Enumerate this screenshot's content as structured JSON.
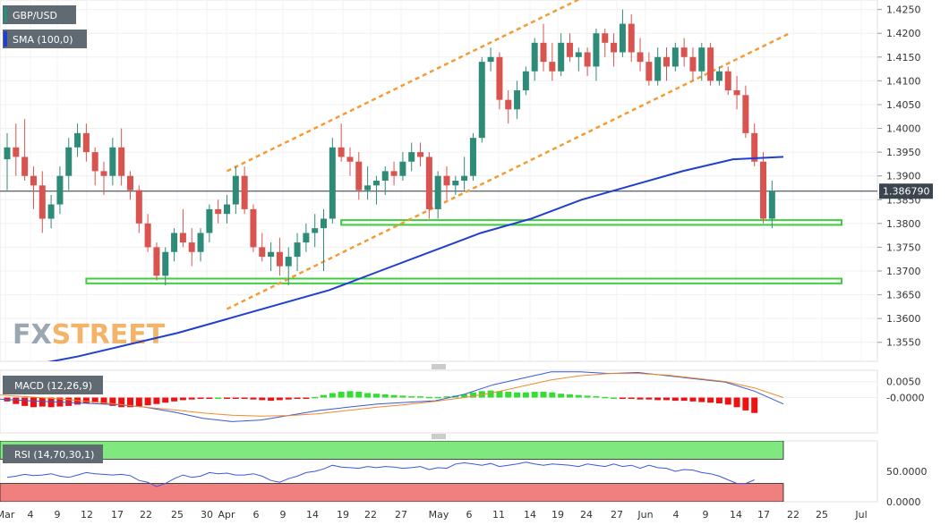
{
  "chart_data": [
    {
      "type": "candlestick",
      "title": "GBP/USD",
      "x_ticks": [
        "Mar",
        "4",
        "9",
        "12",
        "17",
        "22",
        "25",
        "30",
        "Apr",
        "6",
        "9",
        "14",
        "19",
        "22",
        "27",
        "May",
        "6",
        "11",
        "14",
        "19",
        "24",
        "27",
        "Jun",
        "4",
        "9",
        "14",
        "17",
        "22",
        "25",
        "Jul"
      ],
      "y_ticks": [
        "1.4250",
        "1.4200",
        "1.4150",
        "1.4100",
        "1.4050",
        "1.4000",
        "1.3950",
        "1.3900",
        "1.3850",
        "1.3800",
        "1.3750",
        "1.3700",
        "1.3650",
        "1.3600",
        "1.3550"
      ],
      "ylim": [
        1.351,
        1.427
      ],
      "last_price": 1.38679,
      "last_price_label": "1.386790",
      "candles": [
        [
          1.3935,
          1.399,
          1.387,
          1.396
        ],
        [
          1.396,
          1.401,
          1.39,
          1.394
        ],
        [
          1.394,
          1.402,
          1.389,
          1.39
        ],
        [
          1.39,
          1.392,
          1.383,
          1.388
        ],
        [
          1.388,
          1.391,
          1.378,
          1.381
        ],
        [
          1.381,
          1.386,
          1.379,
          1.384
        ],
        [
          1.384,
          1.392,
          1.382,
          1.39
        ],
        [
          1.39,
          1.398,
          1.387,
          1.396
        ],
        [
          1.396,
          1.401,
          1.394,
          1.399
        ],
        [
          1.399,
          1.401,
          1.393,
          1.395
        ],
        [
          1.395,
          1.396,
          1.388,
          1.391
        ],
        [
          1.391,
          1.393,
          1.386,
          1.39
        ],
        [
          1.39,
          1.398,
          1.388,
          1.396
        ],
        [
          1.396,
          1.4,
          1.388,
          1.39
        ],
        [
          1.39,
          1.391,
          1.385,
          1.387
        ],
        [
          1.387,
          1.388,
          1.378,
          1.38
        ],
        [
          1.38,
          1.382,
          1.374,
          1.375
        ],
        [
          1.375,
          1.376,
          1.368,
          1.369
        ],
        [
          1.369,
          1.375,
          1.367,
          1.374
        ],
        [
          1.374,
          1.379,
          1.372,
          1.378
        ],
        [
          1.378,
          1.383,
          1.375,
          1.376
        ],
        [
          1.376,
          1.379,
          1.371,
          1.374
        ],
        [
          1.374,
          1.379,
          1.372,
          1.378
        ],
        [
          1.378,
          1.384,
          1.376,
          1.383
        ],
        [
          1.383,
          1.385,
          1.38,
          1.382
        ],
        [
          1.382,
          1.386,
          1.38,
          1.384
        ],
        [
          1.384,
          1.392,
          1.382,
          1.39
        ],
        [
          1.39,
          1.392,
          1.382,
          1.383
        ],
        [
          1.383,
          1.384,
          1.374,
          1.375
        ],
        [
          1.375,
          1.378,
          1.372,
          1.373
        ],
        [
          1.373,
          1.376,
          1.37,
          1.374
        ],
        [
          1.374,
          1.377,
          1.369,
          1.371
        ],
        [
          1.371,
          1.375,
          1.367,
          1.373
        ],
        [
          1.373,
          1.378,
          1.37,
          1.376
        ],
        [
          1.376,
          1.38,
          1.374,
          1.378
        ],
        [
          1.378,
          1.382,
          1.375,
          1.379
        ],
        [
          1.379,
          1.383,
          1.37,
          1.381
        ],
        [
          1.381,
          1.398,
          1.38,
          1.396
        ],
        [
          1.396,
          1.401,
          1.393,
          1.394
        ],
        [
          1.394,
          1.396,
          1.39,
          1.393
        ],
        [
          1.393,
          1.395,
          1.385,
          1.387
        ],
        [
          1.387,
          1.392,
          1.385,
          1.388
        ],
        [
          1.388,
          1.39,
          1.384,
          1.389
        ],
        [
          1.389,
          1.392,
          1.386,
          1.391
        ],
        [
          1.391,
          1.393,
          1.388,
          1.39
        ],
        [
          1.39,
          1.395,
          1.389,
          1.393
        ],
        [
          1.393,
          1.397,
          1.391,
          1.395
        ],
        [
          1.395,
          1.397,
          1.392,
          1.394
        ],
        [
          1.394,
          1.395,
          1.381,
          1.383
        ],
        [
          1.383,
          1.391,
          1.381,
          1.39
        ],
        [
          1.39,
          1.392,
          1.385,
          1.388
        ],
        [
          1.388,
          1.39,
          1.386,
          1.389
        ],
        [
          1.389,
          1.394,
          1.387,
          1.39
        ],
        [
          1.39,
          1.399,
          1.389,
          1.398
        ],
        [
          1.398,
          1.415,
          1.397,
          1.414
        ],
        [
          1.414,
          1.417,
          1.412,
          1.415
        ],
        [
          1.415,
          1.416,
          1.404,
          1.406
        ],
        [
          1.406,
          1.408,
          1.401,
          1.404
        ],
        [
          1.404,
          1.41,
          1.402,
          1.408
        ],
        [
          1.408,
          1.413,
          1.407,
          1.412
        ],
        [
          1.412,
          1.419,
          1.41,
          1.418
        ],
        [
          1.418,
          1.422,
          1.412,
          1.414
        ],
        [
          1.414,
          1.418,
          1.41,
          1.412
        ],
        [
          1.412,
          1.42,
          1.411,
          1.418
        ],
        [
          1.418,
          1.42,
          1.414,
          1.415
        ],
        [
          1.415,
          1.417,
          1.412,
          1.416
        ],
        [
          1.416,
          1.417,
          1.411,
          1.413
        ],
        [
          1.413,
          1.421,
          1.41,
          1.42
        ],
        [
          1.42,
          1.421,
          1.415,
          1.418
        ],
        [
          1.418,
          1.42,
          1.413,
          1.416
        ],
        [
          1.416,
          1.425,
          1.415,
          1.422
        ],
        [
          1.422,
          1.424,
          1.414,
          1.416
        ],
        [
          1.416,
          1.419,
          1.412,
          1.414
        ],
        [
          1.414,
          1.416,
          1.409,
          1.41
        ],
        [
          1.41,
          1.417,
          1.409,
          1.415
        ],
        [
          1.415,
          1.417,
          1.41,
          1.413
        ],
        [
          1.413,
          1.418,
          1.412,
          1.417
        ],
        [
          1.417,
          1.419,
          1.413,
          1.415
        ],
        [
          1.415,
          1.417,
          1.41,
          1.412
        ],
        [
          1.412,
          1.418,
          1.41,
          1.417
        ],
        [
          1.417,
          1.418,
          1.409,
          1.41
        ],
        [
          1.41,
          1.413,
          1.409,
          1.412
        ],
        [
          1.412,
          1.413,
          1.407,
          1.408
        ],
        [
          1.408,
          1.411,
          1.404,
          1.407
        ],
        [
          1.407,
          1.409,
          1.398,
          1.399
        ],
        [
          1.399,
          1.401,
          1.392,
          1.393
        ],
        [
          1.393,
          1.395,
          1.38,
          1.381
        ],
        [
          1.381,
          1.389,
          1.379,
          1.3868
        ]
      ],
      "sma_100": [
        1.35,
        1.352,
        1.3545,
        1.357,
        1.36,
        1.363,
        1.366,
        1.37,
        1.374,
        1.378,
        1.381,
        1.385,
        1.388,
        1.391,
        1.3935,
        1.394
      ],
      "channel_upper": [
        [
          25,
          1.391
        ],
        [
          66,
          1.428
        ]
      ],
      "channel_lower": [
        [
          25,
          1.362
        ],
        [
          89,
          1.42
        ]
      ],
      "support_zones": [
        [
          1.3797,
          1.3807
        ],
        [
          1.3674,
          1.3684
        ]
      ],
      "legend": [
        "GBP/USD",
        "SMA (100,0)"
      ],
      "watermark": "FXSTREET",
      "colors": {
        "up": "#2e8b77",
        "down": "#d9534f",
        "sma": "#1f3fd0",
        "channel": "#f39c34",
        "zone": "#3fcc3f"
      }
    },
    {
      "type": "bar_line",
      "title": "MACD (12,26,9)",
      "y_ticks": [
        "0.0050",
        "-0.0000"
      ],
      "ylim": [
        -0.011,
        0.0085
      ],
      "histogram": [
        -0.0012,
        -0.002,
        -0.0026,
        -0.003,
        -0.0028,
        -0.003,
        -0.0028,
        -0.0026,
        -0.0022,
        -0.0018,
        -0.0016,
        -0.002,
        -0.0026,
        -0.003,
        -0.003,
        -0.0028,
        -0.0024,
        -0.002,
        -0.0016,
        -0.0012,
        -0.0008,
        -0.0006,
        -0.0004,
        -0.0002,
        0.0,
        -0.0002,
        -0.0002,
        -0.0004,
        -0.0006,
        -0.0008,
        -0.001,
        -0.0008,
        -0.0006,
        -0.0004,
        -0.0002,
        0.0002,
        0.0008,
        0.0014,
        0.0018,
        0.002,
        0.0018,
        0.0014,
        0.0012,
        0.001,
        0.0008,
        0.0006,
        0.0004,
        0.0004,
        0.0002,
        0.0002,
        0.0004,
        0.0006,
        0.001,
        0.0016,
        0.002,
        0.0022,
        0.002,
        0.0018,
        0.0016,
        0.0016,
        0.0018,
        0.0018,
        0.0016,
        0.0012,
        0.001,
        0.0008,
        0.0006,
        0.0004,
        0.0002,
        0.0,
        -0.0002,
        -0.0004,
        -0.0006,
        -0.0006,
        -0.0008,
        -0.0008,
        -0.001,
        -0.001,
        -0.0012,
        -0.0014,
        -0.0016,
        -0.0018,
        -0.0022,
        -0.003,
        -0.004,
        -0.0048
      ],
      "macd_line": [
        -0.0005,
        -0.001,
        -0.0014,
        -0.0018,
        -0.0022,
        -0.003,
        -0.0045,
        -0.0065,
        -0.0075,
        -0.007,
        -0.0055,
        -0.004,
        -0.003,
        -0.002,
        -0.0015,
        -0.001,
        0.001,
        0.004,
        0.006,
        0.008,
        0.008,
        0.0075,
        0.0078,
        0.0068,
        0.0058,
        0.0048,
        0.002,
        -0.002
      ],
      "signal_line": [
        0.0008,
        0.0002,
        -0.0004,
        -0.0012,
        -0.002,
        -0.003,
        -0.0038,
        -0.0048,
        -0.0055,
        -0.0058,
        -0.0056,
        -0.005,
        -0.004,
        -0.003,
        -0.0022,
        -0.0012,
        0.0,
        0.0015,
        0.0035,
        0.0055,
        0.0068,
        0.0075,
        0.0075,
        0.007,
        0.006,
        0.005,
        0.003,
        0.0
      ],
      "colors": {
        "hist_pos": "#33dd33",
        "hist_neg": "#ee1111",
        "macd": "#3b57d9",
        "signal": "#f08a2c"
      }
    },
    {
      "type": "line",
      "title": "RSI (14,70,30,1)",
      "y_ticks": [
        "50.0000",
        "0.0000"
      ],
      "ylim": [
        0,
        100
      ],
      "overbought": 70,
      "oversold": 30,
      "values": [
        40,
        42,
        45,
        43,
        44,
        46,
        42,
        40,
        44,
        48,
        46,
        45,
        44,
        45,
        43,
        35,
        32,
        25,
        30,
        38,
        44,
        40,
        42,
        48,
        46,
        47,
        44,
        44,
        46,
        42,
        35,
        32,
        38,
        42,
        48,
        50,
        54,
        60,
        57,
        56,
        55,
        58,
        56,
        58,
        57,
        55,
        56,
        58,
        53,
        56,
        55,
        62,
        64,
        62,
        60,
        63,
        58,
        60,
        62,
        65,
        62,
        60,
        62,
        61,
        60,
        58,
        62,
        60,
        58,
        62,
        58,
        60,
        55,
        60,
        56,
        55,
        50,
        53,
        52,
        48,
        46,
        42,
        36,
        30,
        30,
        36
      ],
      "colors": {
        "line": "#3b57d9",
        "overbought_zone": "#7fe87f",
        "oversold_zone": "#f07f7f"
      }
    }
  ]
}
